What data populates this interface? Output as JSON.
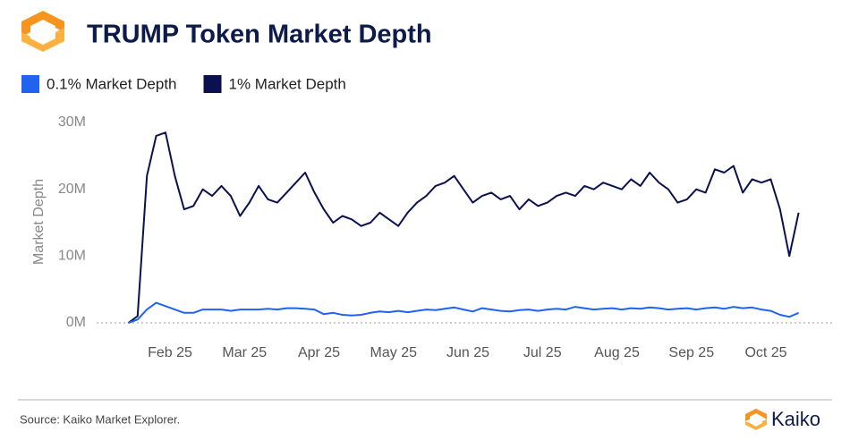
{
  "chart_data": {
    "type": "line",
    "title": "TRUMP Token Market Depth",
    "y_label": "Market Depth",
    "source": "Source: Kaiko Market Explorer.",
    "brand": "Kaiko",
    "categories": [
      null,
      null,
      null,
      null,
      "Feb 25",
      null,
      null,
      null,
      null,
      null,
      null,
      null,
      "Mar 25",
      null,
      null,
      null,
      null,
      null,
      null,
      null,
      "Apr 25",
      null,
      null,
      null,
      null,
      null,
      null,
      null,
      "May 25",
      null,
      null,
      null,
      null,
      null,
      null,
      null,
      "Jun 25",
      null,
      null,
      null,
      null,
      null,
      null,
      null,
      "Jul 25",
      null,
      null,
      null,
      null,
      null,
      null,
      null,
      "Aug 25",
      null,
      null,
      null,
      null,
      null,
      null,
      null,
      "Sep 25",
      null,
      null,
      null,
      null,
      null,
      null,
      null,
      "Oct 25",
      null,
      null,
      null,
      null
    ],
    "series": [
      {
        "name": "0.1% Market Depth",
        "color": "#1f63f0",
        "values": [
          0,
          500000.0,
          2000000.0,
          3000000.0,
          2500000.0,
          2000000.0,
          1500000.0,
          1500000.0,
          2000000.0,
          2000000.0,
          2000000.0,
          1800000.0,
          2000000.0,
          2000000.0,
          2000000.0,
          2100000.0,
          2000000.0,
          2200000.0,
          2200000.0,
          2100000.0,
          2000000.0,
          1300000.0,
          1500000.0,
          1200000.0,
          1100000.0,
          1200000.0,
          1500000.0,
          1700000.0,
          1600000.0,
          1800000.0,
          1600000.0,
          1800000.0,
          2000000.0,
          1900000.0,
          2100000.0,
          2300000.0,
          2000000.0,
          1700000.0,
          2200000.0,
          2000000.0,
          1800000.0,
          1700000.0,
          1900000.0,
          2000000.0,
          1800000.0,
          2000000.0,
          2100000.0,
          2000000.0,
          2400000.0,
          2200000.0,
          2000000.0,
          2100000.0,
          2200000.0,
          2000000.0,
          2200000.0,
          2100000.0,
          2300000.0,
          2200000.0,
          2000000.0,
          2100000.0,
          2200000.0,
          2000000.0,
          2200000.0,
          2300000.0,
          2100000.0,
          2400000.0,
          2200000.0,
          2300000.0,
          2000000.0,
          1800000.0,
          1200000.0,
          900000.0,
          1500000.0
        ]
      },
      {
        "name": "1% Market Depth",
        "color": "#0b1150",
        "values": [
          0,
          1000000.0,
          22000000.0,
          28000000.0,
          28500000.0,
          22000000.0,
          17000000.0,
          17500000.0,
          20000000.0,
          19000000.0,
          20500000.0,
          19000000.0,
          16000000.0,
          18000000.0,
          20500000.0,
          18500000.0,
          18000000.0,
          19500000.0,
          21000000.0,
          22500000.0,
          19500000.0,
          17000000.0,
          15000000.0,
          16000000.0,
          15500000.0,
          14500000.0,
          15000000.0,
          16500000.0,
          15500000.0,
          14500000.0,
          16500000.0,
          18000000.0,
          19000000.0,
          20500000.0,
          21000000.0,
          22000000.0,
          20000000.0,
          18000000.0,
          19000000.0,
          19500000.0,
          18500000.0,
          19000000.0,
          17000000.0,
          18500000.0,
          17500000.0,
          18000000.0,
          19000000.0,
          19500000.0,
          19000000.0,
          20500000.0,
          20000000.0,
          21000000.0,
          20500000.0,
          20000000.0,
          21500000.0,
          20500000.0,
          22500000.0,
          21000000.0,
          20000000.0,
          18000000.0,
          18500000.0,
          20000000.0,
          19500000.0,
          23000000.0,
          22500000.0,
          23500000.0,
          19500000.0,
          21500000.0,
          21000000.0,
          21500000.0,
          17000000.0,
          10000000.0,
          16500000.0
        ]
      }
    ],
    "ylim": [
      0,
      30000000
    ],
    "yticks": [
      {
        "value": 0,
        "label": "0M"
      },
      {
        "value": 10000000,
        "label": "10M"
      },
      {
        "value": 20000000,
        "label": "20M"
      },
      {
        "value": 30000000,
        "label": "30M"
      }
    ]
  }
}
